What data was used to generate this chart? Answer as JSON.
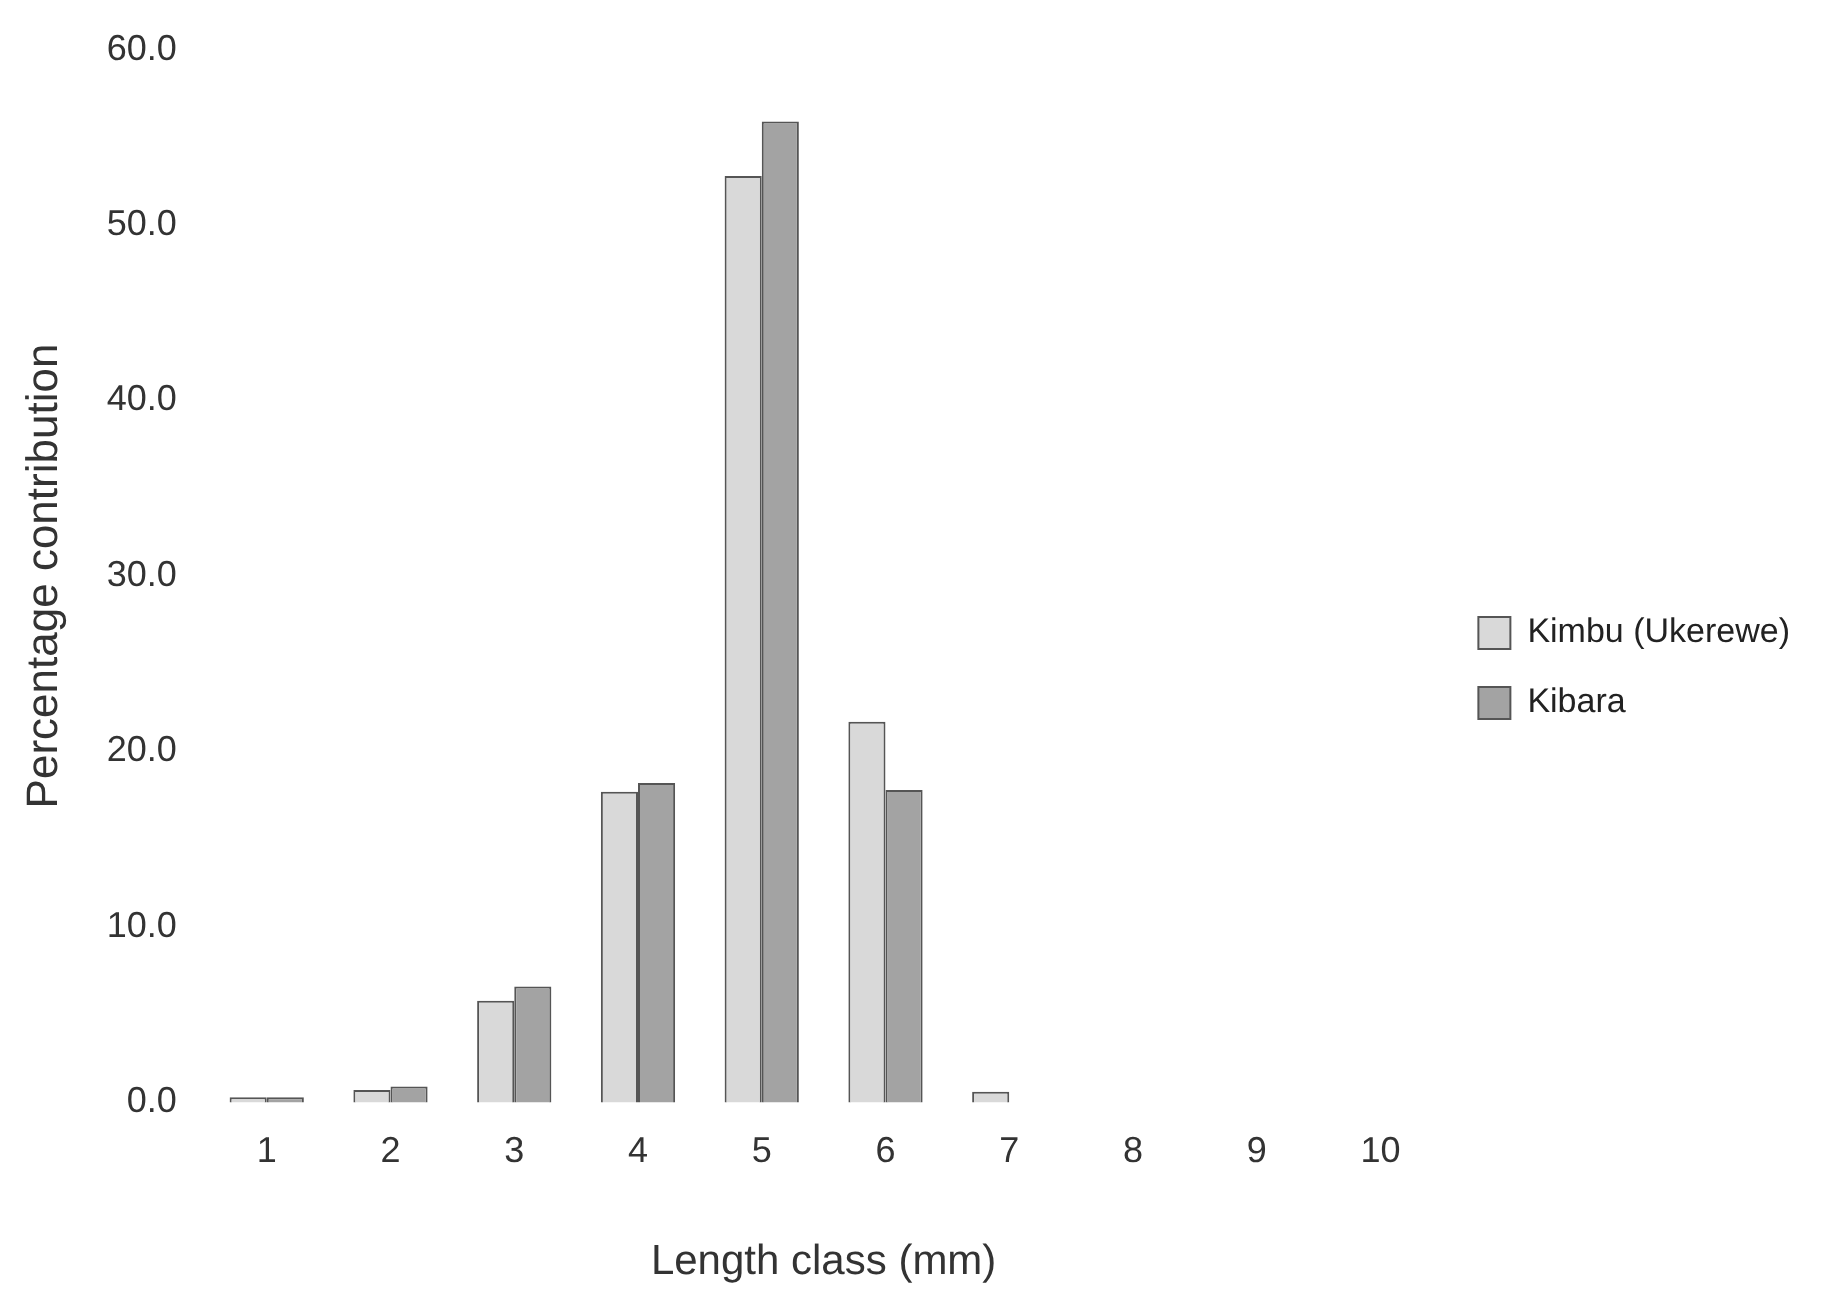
{
  "chart_data": {
    "type": "bar",
    "xlabel": "Length class (mm)",
    "ylabel": "Percentage contribution",
    "categories": [
      "1",
      "2",
      "3",
      "4",
      "5",
      "6",
      "7",
      "8",
      "9",
      "10"
    ],
    "series": [
      {
        "name": "Kimbu (Ukerewe)",
        "color": "#d9d9d9",
        "values": [
          0.3,
          0.7,
          5.8,
          17.7,
          52.8,
          21.7,
          0.6,
          0,
          0,
          0
        ]
      },
      {
        "name": "Kibara",
        "color": "#a3a3a3",
        "values": [
          0.3,
          0.9,
          6.6,
          18.2,
          55.9,
          17.8,
          0,
          0,
          0,
          0
        ]
      }
    ],
    "ylim": [
      0,
      60
    ],
    "yticks": [
      {
        "value": 0,
        "label": "0.0"
      },
      {
        "value": 10,
        "label": "10.0"
      },
      {
        "value": 20,
        "label": "20.0"
      },
      {
        "value": 30,
        "label": "30.0"
      },
      {
        "value": 40,
        "label": "40.0"
      },
      {
        "value": 50,
        "label": "50.0"
      },
      {
        "value": 60,
        "label": "60.0"
      }
    ],
    "grid": false,
    "legend": "right"
  }
}
